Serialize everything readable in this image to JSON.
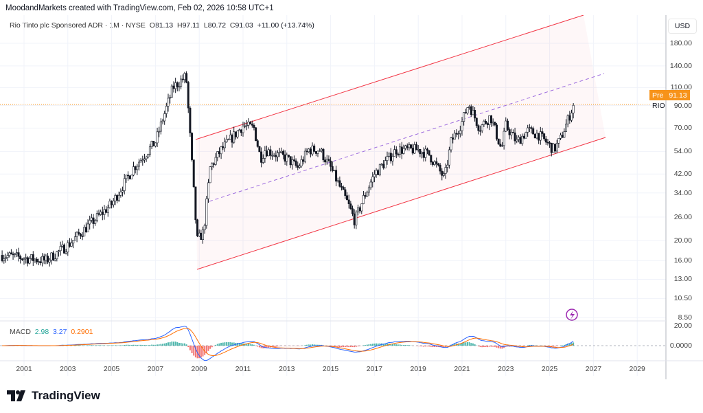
{
  "header": {
    "credit": "MoodandMarkets created with TradingView.com, Feb 02, 2026 10:58 UTC+1"
  },
  "legend": {
    "symbol": "Rio Tinto plc Sponsored ADR · 1M · NYSE",
    "o_label": "O",
    "o": "81.13",
    "h_label": "H",
    "h": "97.11",
    "l_label": "L",
    "l": "80.72",
    "c_label": "C",
    "c": "91.03",
    "change": "+11.00 (+13.74%)"
  },
  "price_axis": {
    "currency": "USD",
    "labels": [
      "180.00",
      "140.00",
      "110.00",
      "90.00",
      "70.00",
      "54.00",
      "42.00",
      "34.00",
      "26.00",
      "20.00",
      "16.00",
      "13.00",
      "10.50",
      "8.50"
    ],
    "pre_label": "Pre",
    "pre_price": "91.13",
    "ticker": "RIO"
  },
  "macd": {
    "label": "MACD",
    "hist": "2.98",
    "macd": "3.27",
    "signal": "0.2901",
    "axis": [
      "20.00",
      "0.0000"
    ]
  },
  "time_axis": [
    "2001",
    "2003",
    "2005",
    "2007",
    "2009",
    "2011",
    "2013",
    "2015",
    "2017",
    "2019",
    "2021",
    "2023",
    "2025",
    "2027",
    "2029"
  ],
  "colors": {
    "up": "#131722",
    "channel": "#f23645",
    "mid": "#9c6ade",
    "macd": "#2962ff",
    "signal": "#ff6d00",
    "hist_up": "#26a69a",
    "hist_dn": "#ef5350",
    "pre": "#f7931a"
  },
  "chart_data": {
    "type": "candlestick",
    "scale": "log",
    "interval": "1M",
    "last_close": 91.03,
    "range_years": [
      2000,
      2026.1
    ],
    "keypoints": [
      [
        2000,
        17
      ],
      [
        2002,
        16
      ],
      [
        2003,
        19
      ],
      [
        2004,
        24
      ],
      [
        2005,
        30
      ],
      [
        2006,
        45
      ],
      [
        2007,
        60
      ],
      [
        2007.8,
        110
      ],
      [
        2008.4,
        125
      ],
      [
        2008.9,
        20
      ],
      [
        2009.2,
        22
      ],
      [
        2009.5,
        45
      ],
      [
        2010,
        55
      ],
      [
        2011,
        72
      ],
      [
        2011.5,
        70
      ],
      [
        2011.8,
        50
      ],
      [
        2012,
        55
      ],
      [
        2013,
        50
      ],
      [
        2013.5,
        45
      ],
      [
        2014,
        55
      ],
      [
        2014.5,
        55
      ],
      [
        2015,
        45
      ],
      [
        2015.8,
        30
      ],
      [
        2016.1,
        25
      ],
      [
        2016.5,
        32
      ],
      [
        2017,
        42
      ],
      [
        2018,
        55
      ],
      [
        2019,
        55
      ],
      [
        2019.5,
        52
      ],
      [
        2020.2,
        40
      ],
      [
        2020.5,
        60
      ],
      [
        2021,
        75
      ],
      [
        2021.3,
        92
      ],
      [
        2021.8,
        70
      ],
      [
        2022.3,
        80
      ],
      [
        2022.8,
        55
      ],
      [
        2023,
        72
      ],
      [
        2023.5,
        60
      ],
      [
        2024,
        68
      ],
      [
        2024.5,
        65
      ],
      [
        2025.2,
        55
      ],
      [
        2025.5,
        62
      ],
      [
        2025.9,
        80
      ],
      [
        2026.1,
        91
      ]
    ]
  }
}
